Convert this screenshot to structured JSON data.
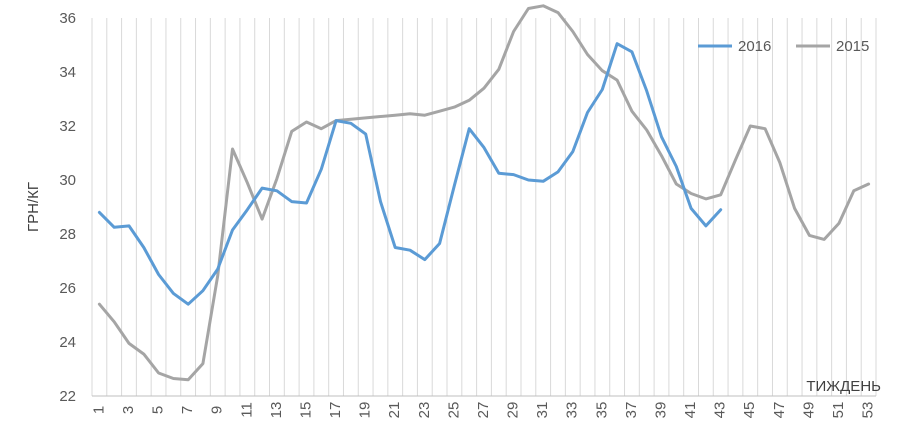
{
  "chart_data": {
    "type": "line",
    "ylabel": "ГРН/КГ",
    "xlabel": "ТИЖДЕНЬ",
    "ylim": [
      22,
      36
    ],
    "y_ticks": [
      22,
      24,
      26,
      28,
      30,
      32,
      34,
      36
    ],
    "x_range": [
      1,
      53
    ],
    "x_tick_labels": [
      "1",
      "3",
      "5",
      "7",
      "9",
      "11",
      "13",
      "15",
      "17",
      "19",
      "21",
      "23",
      "25",
      "27",
      "29",
      "31",
      "33",
      "35",
      "37",
      "39",
      "41",
      "43",
      "45",
      "47",
      "49",
      "51",
      "53"
    ],
    "grid": {
      "vertical": true,
      "horizontal": false
    },
    "legend": {
      "placement": "top-right"
    },
    "series": [
      {
        "name": "2016",
        "color": "#5b9bd5",
        "x": [
          1,
          2,
          3,
          4,
          5,
          6,
          7,
          8,
          9,
          10,
          11,
          12,
          13,
          14,
          15,
          16,
          17,
          18,
          19,
          20,
          21,
          22,
          23,
          24,
          25,
          26,
          27,
          28,
          29,
          30,
          31,
          32,
          33,
          34,
          35,
          36,
          37,
          38,
          39,
          40,
          41,
          42,
          43
        ],
        "values": [
          28.8,
          28.25,
          28.3,
          27.5,
          26.5,
          25.8,
          25.4,
          25.9,
          26.7,
          28.15,
          28.9,
          29.7,
          29.6,
          29.2,
          29.15,
          30.4,
          32.2,
          32.1,
          31.7,
          29.2,
          27.5,
          27.4,
          27.05,
          27.65,
          29.8,
          31.9,
          31.2,
          30.25,
          30.2,
          30.0,
          29.95,
          30.3,
          31.05,
          32.5,
          33.35,
          35.05,
          34.75,
          33.3,
          31.6,
          30.5,
          28.95,
          28.3,
          28.9
        ]
      },
      {
        "name": "2015",
        "color": "#a5a5a5",
        "x": [
          1,
          2,
          3,
          4,
          5,
          6,
          7,
          8,
          9,
          10,
          11,
          12,
          13,
          14,
          15,
          16,
          17,
          18,
          19,
          20,
          21,
          22,
          23,
          24,
          25,
          26,
          27,
          28,
          29,
          30,
          31,
          32,
          33,
          34,
          35,
          36,
          37,
          38,
          39,
          40,
          41,
          42,
          43,
          44,
          45,
          46,
          47,
          48,
          49,
          50,
          51,
          52,
          53
        ],
        "values": [
          25.4,
          24.75,
          23.95,
          23.55,
          22.85,
          22.65,
          22.6,
          23.2,
          26.45,
          31.15,
          29.9,
          28.55,
          30.05,
          31.8,
          32.15,
          31.9,
          32.2,
          32.25,
          32.3,
          32.35,
          32.4,
          32.45,
          32.4,
          32.55,
          32.7,
          32.95,
          33.4,
          34.1,
          35.5,
          36.35,
          36.45,
          36.2,
          35.5,
          34.65,
          34.05,
          33.7,
          32.55,
          31.85,
          30.9,
          29.85,
          29.5,
          29.3,
          29.45,
          30.75,
          32.0,
          31.9,
          30.65,
          28.95,
          27.95,
          27.8,
          28.4,
          29.6,
          29.85
        ]
      }
    ]
  }
}
